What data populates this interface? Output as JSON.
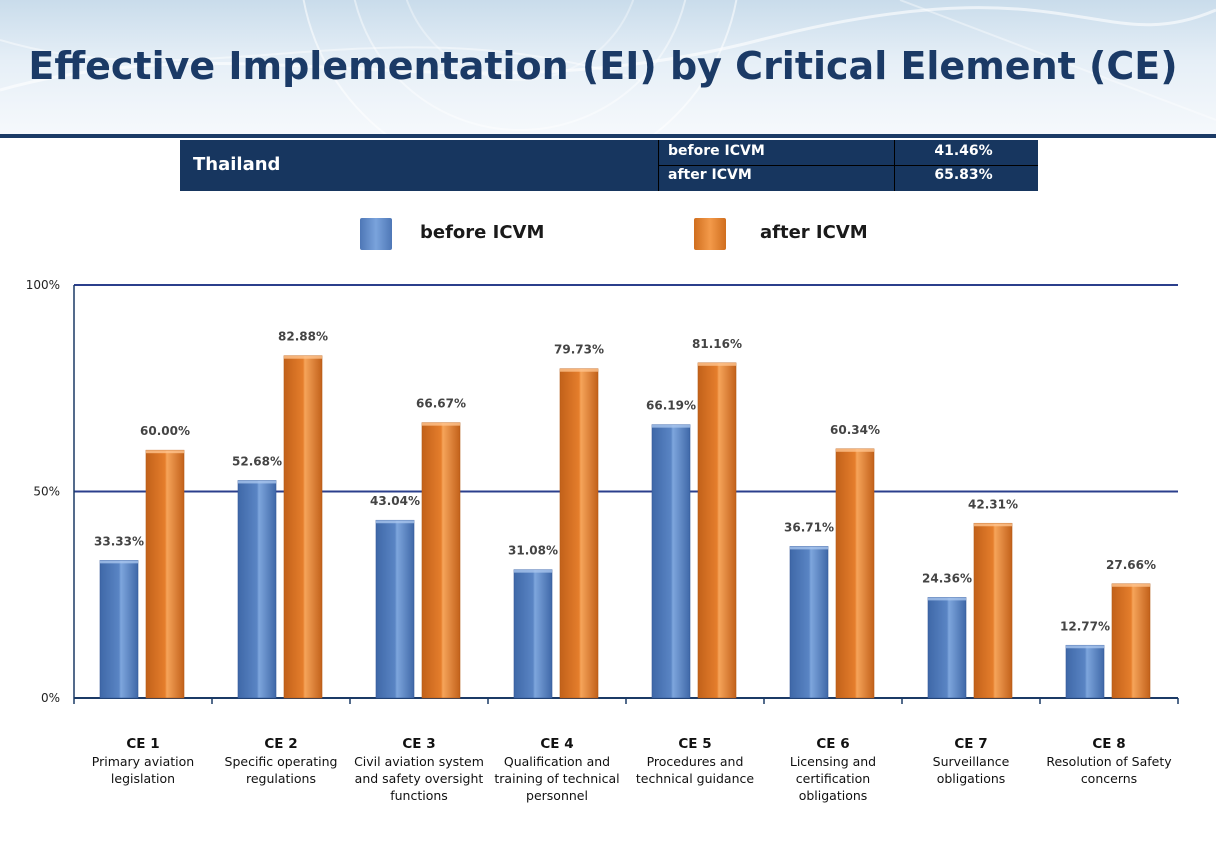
{
  "title": "Effective Implementation (EI) by Critical Element (CE)",
  "summary": {
    "country": "Thailand",
    "rows": [
      {
        "label": "before ICVM",
        "value": "41.46%"
      },
      {
        "label": "after ICVM",
        "value": "65.83%"
      }
    ]
  },
  "colors": {
    "before": "#5a85c4",
    "after": "#e57e2c",
    "title": "#1b3a66",
    "gridline": "#2b3f8c"
  },
  "chart_data": {
    "type": "bar",
    "categories": [
      {
        "code": "CE 1",
        "desc": "Primary aviation legislation"
      },
      {
        "code": "CE 2",
        "desc": "Specific operating regulations"
      },
      {
        "code": "CE 3",
        "desc": "Civil aviation system and safety oversight functions"
      },
      {
        "code": "CE 4",
        "desc": "Qualification and training of technical personnel"
      },
      {
        "code": "CE 5",
        "desc": "Procedures and technical guidance"
      },
      {
        "code": "CE 6",
        "desc": "Licensing and certification obligations"
      },
      {
        "code": "CE 7",
        "desc": "Surveillance obligations"
      },
      {
        "code": "CE 8",
        "desc": "Resolution of Safety concerns"
      }
    ],
    "series": [
      {
        "name": "before ICVM",
        "values": [
          33.33,
          52.68,
          43.04,
          31.08,
          66.19,
          36.71,
          24.36,
          12.77
        ],
        "labels": [
          "33.33%",
          "52.68%",
          "43.04%",
          "31.08%",
          "66.19%",
          "36.71%",
          "24.36%",
          "12.77%"
        ]
      },
      {
        "name": "after ICVM",
        "values": [
          60.0,
          82.88,
          66.67,
          79.73,
          81.16,
          60.34,
          42.31,
          27.66
        ],
        "labels": [
          "60.00%",
          "82.88%",
          "66.67%",
          "79.73%",
          "81.16%",
          "60.34%",
          "42.31%",
          "27.66%"
        ]
      }
    ],
    "y_ticks": [
      "0%",
      "50%",
      "100%"
    ],
    "ylim": [
      0,
      100
    ],
    "grid": true,
    "legend": "top-center"
  }
}
